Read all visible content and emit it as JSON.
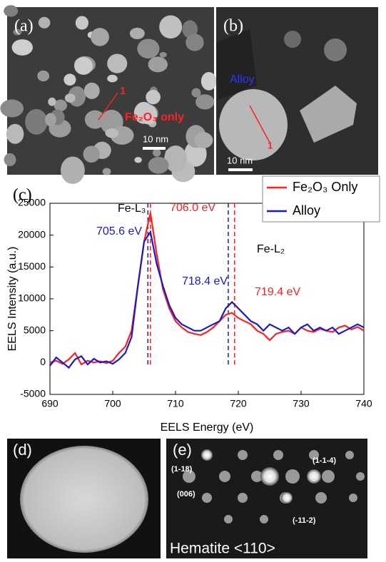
{
  "chart_data": {
    "type": "line",
    "panel_label": "(c)",
    "x_label": "EELS Energy (eV)",
    "y_label": "EELS Intensity (a.u.)",
    "x": [
      690,
      691,
      692,
      693,
      694,
      695,
      696,
      697,
      698,
      699,
      700,
      701,
      702,
      703,
      704,
      705,
      706,
      707,
      708,
      709,
      710,
      711,
      712,
      713,
      714,
      715,
      716,
      717,
      718,
      719,
      720,
      721,
      722,
      723,
      724,
      725,
      726,
      727,
      728,
      729,
      730,
      731,
      732,
      733,
      734,
      735,
      736,
      737,
      738,
      739,
      740
    ],
    "series": [
      {
        "name": "Fe₂O₃ Only",
        "color": "#ff2020",
        "values": [
          0,
          300,
          -200,
          500,
          1500,
          -300,
          300,
          0,
          200,
          -100,
          300,
          1500,
          2500,
          5000,
          12000,
          19000,
          23500,
          17000,
          11500,
          8500,
          6500,
          5500,
          4800,
          4500,
          4300,
          4800,
          5500,
          6500,
          7500,
          7800,
          7000,
          6500,
          6000,
          5000,
          4500,
          3500,
          4500,
          4800,
          5000,
          4500,
          5500,
          5000,
          4800,
          5300,
          5000,
          4800,
          5500,
          5800,
          5200,
          5600,
          5000
        ]
      },
      {
        "name": "Alloy",
        "color": "#1a1acc",
        "values": [
          -500,
          800,
          0,
          -800,
          500,
          1000,
          -300,
          600,
          0,
          200,
          -200,
          500,
          1500,
          4000,
          12000,
          19000,
          20500,
          15500,
          12000,
          9000,
          7000,
          6000,
          5500,
          5000,
          5000,
          5500,
          6000,
          6500,
          8500,
          9500,
          8500,
          7500,
          6500,
          6000,
          5000,
          6000,
          5500,
          5000,
          5500,
          4500,
          5500,
          6000,
          5000,
          5500,
          5000,
          5500,
          4500,
          5000,
          5500,
          6000,
          5500
        ]
      }
    ],
    "xlim": [
      690,
      740
    ],
    "xticks": [
      690,
      700,
      710,
      720,
      730,
      740
    ],
    "ylim": [
      -5000,
      25000
    ],
    "yticks": [
      -5000,
      0,
      5000,
      10000,
      15000,
      20000,
      25000
    ],
    "markers": [
      {
        "x": 705.6,
        "label": "705.6 eV",
        "color": "#1a1acc"
      },
      {
        "x": 706.0,
        "label": "706.0 eV",
        "color": "#ff2020"
      },
      {
        "x": 718.4,
        "label": "718.4 eV",
        "color": "#1a1acc"
      },
      {
        "x": 719.4,
        "label": "719.4 eV",
        "color": "#ff2020"
      }
    ],
    "annotations": [
      "Fe-L₃",
      "Fe-L₂"
    ],
    "legend": "top-right"
  },
  "panels": {
    "a": {
      "label": "(a)",
      "annotation": "Fe₂O₃ only",
      "marker": "1",
      "scale": "10 nm"
    },
    "b": {
      "label": "(b)",
      "annotation": "Alloy",
      "marker": "1",
      "scale": "10 nm"
    },
    "d": {
      "label": "(d)"
    },
    "e": {
      "label": "(e)",
      "spots": [
        "(1-18)",
        "(1-1-4)",
        "(006)",
        "(-11-2)"
      ],
      "caption": "Hematite <110>"
    }
  }
}
